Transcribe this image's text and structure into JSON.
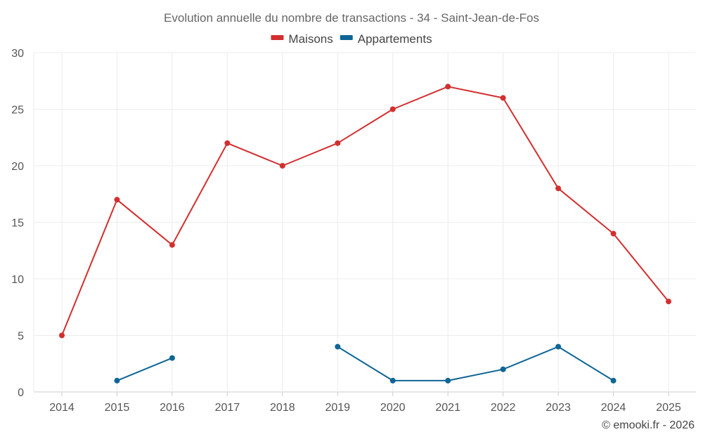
{
  "chart_data": {
    "type": "line",
    "title": "Evolution annuelle du nombre de transactions - 34 - Saint-Jean-de-Fos",
    "categories": [
      "2014",
      "2015",
      "2016",
      "2017",
      "2018",
      "2019",
      "2020",
      "2021",
      "2022",
      "2023",
      "2024",
      "2025"
    ],
    "series": [
      {
        "name": "Maisons",
        "color": "#d32f2f",
        "values": [
          5,
          17,
          13,
          22,
          20,
          22,
          25,
          27,
          26,
          18,
          14,
          8
        ]
      },
      {
        "name": "Appartements",
        "color": "#0e6596",
        "values": [
          null,
          1,
          3,
          null,
          null,
          4,
          1,
          1,
          2,
          4,
          1,
          null
        ]
      }
    ],
    "ylim": [
      0,
      30
    ],
    "yticks": [
      0,
      5,
      10,
      15,
      20,
      25,
      30
    ],
    "grid": true,
    "legend": "top-center",
    "credit": "© emooki.fr - 2026"
  }
}
